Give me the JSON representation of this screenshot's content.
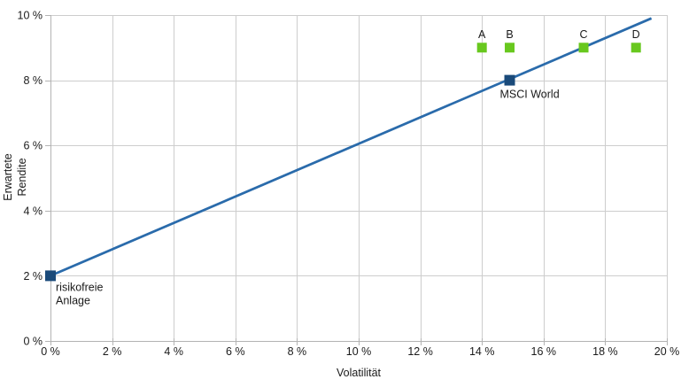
{
  "chart_data": {
    "type": "scatter",
    "xlabel": "Volatilität",
    "ylabel": "Erwartete Rendite",
    "xlim": [
      0,
      20
    ],
    "ylim": [
      0,
      10
    ],
    "grid": true,
    "x_ticks": [
      {
        "value": 0,
        "label": "0 %"
      },
      {
        "value": 2,
        "label": "2 %"
      },
      {
        "value": 4,
        "label": "4 %"
      },
      {
        "value": 6,
        "label": "6 %"
      },
      {
        "value": 8,
        "label": "8 %"
      },
      {
        "value": 10,
        "label": "10 %"
      },
      {
        "value": 12,
        "label": "12 %"
      },
      {
        "value": 14,
        "label": "14 %"
      },
      {
        "value": 16,
        "label": "16 %"
      },
      {
        "value": 18,
        "label": "18 %"
      },
      {
        "value": 20,
        "label": "20 %"
      }
    ],
    "y_ticks": [
      {
        "value": 0,
        "label": "0 %"
      },
      {
        "value": 2,
        "label": "2 %"
      },
      {
        "value": 4,
        "label": "4 %"
      },
      {
        "value": 6,
        "label": "6 %"
      },
      {
        "value": 8,
        "label": "8 %"
      },
      {
        "value": 10,
        "label": "10 %"
      }
    ],
    "colors": {
      "line": "#2a6bab",
      "portfolio_marker": "#1a4a7a",
      "candidate_marker": "#68c81e",
      "gridline": "#cdcdcd",
      "axis": "#b3b3b3",
      "text": "#1a1a1a"
    },
    "line_series": {
      "points": [
        [
          0,
          2
        ],
        [
          19.5,
          9.9
        ]
      ]
    },
    "points": [
      {
        "id": "risikofreie-anlage",
        "series": "portfolio",
        "x": 0,
        "y": 2,
        "label_lines": [
          "risikofreie",
          "Anlage"
        ],
        "label_pos": "below-right"
      },
      {
        "id": "msci-world",
        "series": "portfolio",
        "x": 14.9,
        "y": 8,
        "label_lines": [
          "MSCI World"
        ],
        "label_pos": "below"
      },
      {
        "id": "A",
        "series": "candidate",
        "x": 14,
        "y": 9,
        "label_lines": [
          "A"
        ],
        "label_pos": "above"
      },
      {
        "id": "B",
        "series": "candidate",
        "x": 14.9,
        "y": 9,
        "label_lines": [
          "B"
        ],
        "label_pos": "above"
      },
      {
        "id": "C",
        "series": "candidate",
        "x": 17.3,
        "y": 9,
        "label_lines": [
          "C"
        ],
        "label_pos": "above"
      },
      {
        "id": "D",
        "series": "candidate",
        "x": 19,
        "y": 9,
        "label_lines": [
          "D"
        ],
        "label_pos": "above"
      }
    ]
  }
}
